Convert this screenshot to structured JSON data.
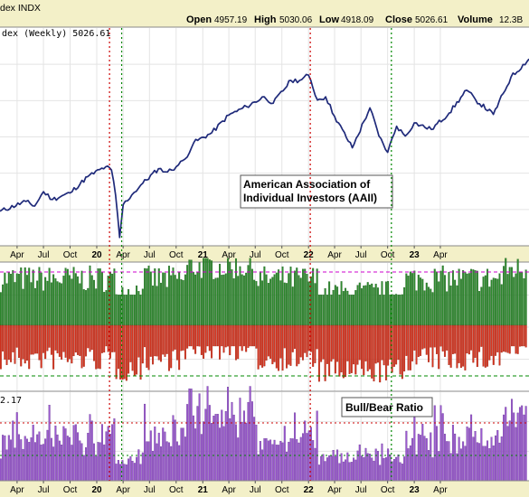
{
  "header": {
    "symbol_text": "dex INDX",
    "open_label": "Open",
    "open_value": "4957.19",
    "high_label": "High",
    "high_value": "5030.06",
    "low_label": "Low",
    "low_value": "4918.09",
    "close_label": "Close",
    "close_value": "5026.61",
    "volume_label": "Volume",
    "volume_value": "12.3B"
  },
  "price_panel": {
    "legend": "dex (Weekly) 5026.61"
  },
  "annotations": {
    "aaii": [
      "American Association of",
      "Individual Investors (AAII)"
    ],
    "bull_bear": "Bull/Bear Ratio"
  },
  "ratio_panel": {
    "label": "2.17"
  },
  "x_axis": {
    "ticks_top": [
      "Apr",
      "Jul",
      "Oct",
      "20",
      "Apr",
      "Jul",
      "Oct",
      "21",
      "Apr",
      "Jul",
      "Oct",
      "22",
      "Apr",
      "Jul",
      "Oct",
      "23",
      "Apr"
    ],
    "ticks_bottom": [
      "Apr",
      "Jul",
      "Oct",
      "20",
      "Apr",
      "Jul",
      "Oct",
      "21",
      "Apr",
      "Jul",
      "Oct",
      "22",
      "Apr",
      "Jul",
      "Oct",
      "23",
      "Apr"
    ]
  },
  "colors": {
    "price_line": "#1f2a7a",
    "bull_bars": "#2e8b2e",
    "bear_bars": "#d8341f",
    "ratio_bars": "#9b59d0",
    "axis_band": "#f3f0c8",
    "red_marker": "#cc0000",
    "green_marker": "#008800",
    "magenta_ref": "#cc00cc"
  },
  "chart_data": {
    "type": "line",
    "x_start": "2019-02",
    "x_end": "2024-02",
    "price_series": {
      "name": "dex (Weekly)",
      "last": 5026.61,
      "points": [
        [
          "2019-02",
          2700
        ],
        [
          "2019-05",
          2850
        ],
        [
          "2019-06",
          2780
        ],
        [
          "2019-07",
          3000
        ],
        [
          "2019-08",
          2880
        ],
        [
          "2019-10",
          2980
        ],
        [
          "2019-12",
          3230
        ],
        [
          "2020-02",
          3380
        ],
        [
          "2020-02-21",
          3330
        ],
        [
          "2020-03-06",
          2950
        ],
        [
          "2020-03-20",
          2300
        ],
        [
          "2020-04",
          2800
        ],
        [
          "2020-05",
          2950
        ],
        [
          "2020-06",
          3100
        ],
        [
          "2020-08",
          3350
        ],
        [
          "2020-09",
          3300
        ],
        [
          "2020-10",
          3380
        ],
        [
          "2020-11",
          3500
        ],
        [
          "2020-12",
          3750
        ],
        [
          "2021-02",
          3900
        ],
        [
          "2021-04",
          4170
        ],
        [
          "2021-06",
          4300
        ],
        [
          "2021-08",
          4450
        ],
        [
          "2021-09",
          4350
        ],
        [
          "2021-11",
          4700
        ],
        [
          "2021-12",
          4700
        ],
        [
          "2022-01",
          4780
        ],
        [
          "2022-02",
          4400
        ],
        [
          "2022-03",
          4450
        ],
        [
          "2022-04",
          4150
        ],
        [
          "2022-06",
          3670
        ],
        [
          "2022-08",
          4280
        ],
        [
          "2022-09",
          3850
        ],
        [
          "2022-10",
          3600
        ],
        [
          "2022-11",
          4000
        ],
        [
          "2022-12",
          3850
        ],
        [
          "2023-01",
          4050
        ],
        [
          "2023-03",
          3950
        ],
        [
          "2023-05",
          4200
        ],
        [
          "2023-07",
          4550
        ],
        [
          "2023-08",
          4400
        ],
        [
          "2023-10",
          4180
        ],
        [
          "2023-12",
          4750
        ],
        [
          "2024-02",
          5026.61
        ]
      ]
    },
    "aaii_sentiment": {
      "seed": 7,
      "bull_range_pct": [
        25,
        55
      ],
      "bear_range_pct": [
        20,
        60
      ],
      "ratio_range": [
        0.3,
        2.8
      ],
      "ratio_last": 2.17
    },
    "markers": {
      "red": [
        "2020-02-14",
        "2022-01-07"
      ],
      "green": [
        "2020-03-27",
        "2022-10-14"
      ]
    }
  }
}
